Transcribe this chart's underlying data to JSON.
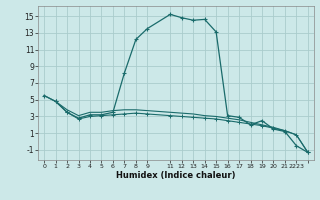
{
  "xlabel": "Humidex (Indice chaleur)",
  "background_color": "#cce8e8",
  "grid_color": "#aacccc",
  "line_color": "#1a6b6b",
  "xlim": [
    -0.5,
    23.5
  ],
  "ylim": [
    -2.2,
    16.2
  ],
  "xtick_vals": [
    0,
    1,
    2,
    3,
    4,
    5,
    6,
    7,
    8,
    9,
    11,
    12,
    13,
    14,
    15,
    16,
    17,
    18,
    19,
    20,
    21,
    22,
    23
  ],
  "xtick_labels": [
    "0",
    "1",
    "2",
    "3",
    "4",
    "5",
    "6",
    "7",
    "8",
    "9",
    "11",
    "12",
    "13",
    "14",
    "15",
    "16",
    "17",
    "18",
    "19",
    "20",
    "21",
    "2223",
    ""
  ],
  "ytick_vals": [
    -1,
    1,
    3,
    5,
    7,
    9,
    11,
    13,
    15
  ],
  "curve1_x": [
    0,
    1,
    2,
    3,
    4,
    5,
    6,
    7,
    8,
    9,
    11,
    12,
    13,
    14,
    15,
    16,
    17,
    18,
    19,
    20,
    21,
    22,
    23
  ],
  "curve1_y": [
    5.5,
    4.8,
    3.5,
    2.8,
    3.2,
    3.2,
    3.5,
    8.2,
    12.2,
    13.5,
    15.2,
    14.8,
    14.5,
    14.6,
    13.1,
    3.1,
    2.9,
    2.0,
    2.5,
    1.5,
    1.2,
    -0.5,
    -1.3
  ],
  "curve2_x": [
    1,
    2,
    3,
    4,
    5,
    6,
    7,
    8,
    9,
    11,
    12,
    13,
    14,
    15,
    16,
    17,
    18,
    19,
    20,
    21,
    22,
    23
  ],
  "curve2_y": [
    4.8,
    3.5,
    2.7,
    3.0,
    3.1,
    3.2,
    3.3,
    3.4,
    3.3,
    3.1,
    3.0,
    2.9,
    2.8,
    2.7,
    2.5,
    2.3,
    2.1,
    1.9,
    1.6,
    1.3,
    0.8,
    -1.3
  ],
  "curve3_x": [
    0,
    1,
    2,
    3,
    4,
    5,
    6,
    7,
    8,
    9,
    11,
    12,
    13,
    14,
    15,
    16,
    17,
    18,
    19,
    20,
    21,
    22,
    23
  ],
  "curve3_y": [
    5.5,
    4.8,
    3.8,
    3.1,
    3.5,
    3.5,
    3.7,
    3.8,
    3.8,
    3.7,
    3.5,
    3.4,
    3.3,
    3.1,
    3.0,
    2.8,
    2.6,
    2.3,
    2.0,
    1.7,
    1.3,
    0.8,
    -1.3
  ]
}
